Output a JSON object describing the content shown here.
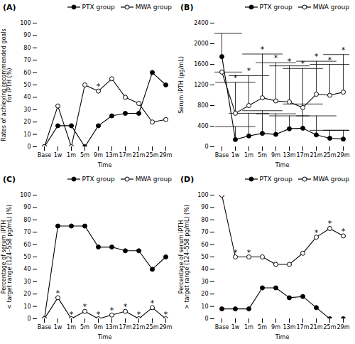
{
  "chart_data": [
    {
      "type": "line",
      "title": "(A)",
      "xlabel": "Time",
      "ylabel": "Rates of achieving recommended goals\nfor iPTH (%)",
      "categories": [
        "Base",
        "1w",
        "1m",
        "5m",
        "9m",
        "13m",
        "17m",
        "21m",
        "25m",
        "29m"
      ],
      "series": [
        {
          "name": "PTX group",
          "color": "black",
          "marker": "filled_circle",
          "values": [
            0,
            17,
            17,
            0,
            17,
            25,
            27,
            27,
            60,
            50
          ]
        },
        {
          "name": "MWA group",
          "color": "black",
          "marker": "open_circle",
          "values": [
            0,
            33,
            0,
            50,
            45,
            55,
            40,
            35,
            20,
            22
          ]
        }
      ],
      "ylim": [
        0,
        100
      ],
      "yticks": [
        0,
        10,
        20,
        30,
        40,
        50,
        60,
        70,
        80,
        90,
        100
      ],
      "legend": "upper right",
      "annotations": [
        {
          "text": "*",
          "x": "9m",
          "y": 45
        }
      ]
    },
    {
      "type": "line",
      "title": "(B)",
      "xlabel": "Time",
      "ylabel": "Serum iPTH (pg/mL)",
      "categories": [
        "Base",
        "1w",
        "1m",
        "5m",
        "9m",
        "13m",
        "17m",
        "21m",
        "25m",
        "29m"
      ],
      "series": [
        {
          "name": "PTX group",
          "color": "black",
          "marker": "filled_circle",
          "values": [
            1750,
            140,
            210,
            260,
            240,
            350,
            360,
            230,
            165,
            150
          ],
          "err_high": [
            2200,
            390,
            650,
            700,
            640,
            600,
            830,
            600,
            320,
            320
          ]
        },
        {
          "name": "MWA group",
          "color": "black",
          "marker": "open_circle",
          "values": [
            1450,
            650,
            800,
            950,
            890,
            870,
            760,
            1020,
            1000,
            1060
          ],
          "err_high": [
            1450,
            1250,
            1380,
            1800,
            1630,
            1570,
            1520,
            1660,
            1600,
            1790
          ]
        }
      ],
      "ylim": [
        0,
        2400
      ],
      "yticks": [
        0,
        400,
        800,
        1200,
        1600,
        2000,
        2400
      ],
      "legend": "upper right",
      "annotations": [
        {
          "text": "*",
          "x": "1w",
          "y": 1250
        },
        {
          "text": "*",
          "x": "1m",
          "y": 1380
        },
        {
          "text": "*",
          "x": "5m",
          "y": 1800
        },
        {
          "text": "*",
          "x": "9m",
          "y": 1630
        },
        {
          "text": "*",
          "x": "13m",
          "y": 1570
        },
        {
          "text": "*",
          "x": "17m",
          "y": 1520
        },
        {
          "text": "*",
          "x": "21m",
          "y": 1660
        },
        {
          "text": "*",
          "x": "25m",
          "y": 1600
        },
        {
          "text": "*",
          "x": "29m",
          "y": 1790
        }
      ]
    },
    {
      "type": "line",
      "title": "(C)",
      "xlabel": "Time",
      "ylabel": "Percentage of serum iPTH\n< target range (124–558 pg/mL) (%)",
      "categories": [
        "Base",
        "1w",
        "1m",
        "5m",
        "9m",
        "13m",
        "17m",
        "21m",
        "25m",
        "29m"
      ],
      "series": [
        {
          "name": "PTX group",
          "color": "black",
          "marker": "filled_circle",
          "values": [
            0,
            75,
            75,
            75,
            58,
            58,
            55,
            55,
            40,
            50
          ]
        },
        {
          "name": "MWA group",
          "color": "black",
          "marker": "open_circle",
          "values": [
            0,
            17,
            0,
            6,
            0,
            3,
            6,
            0,
            9,
            0
          ]
        }
      ],
      "ylim": [
        0,
        100
      ],
      "yticks": [
        0,
        10,
        20,
        30,
        40,
        50,
        60,
        70,
        80,
        90,
        100
      ],
      "legend": "upper right",
      "annotations": [
        {
          "text": "*",
          "x": "1w",
          "y": 17
        },
        {
          "text": "*",
          "x": "1m",
          "y": 0
        },
        {
          "text": "*",
          "x": "5m",
          "y": 6
        },
        {
          "text": "*",
          "x": "9m",
          "y": 0
        },
        {
          "text": "*",
          "x": "13m",
          "y": 3
        },
        {
          "text": "*",
          "x": "17m",
          "y": 6
        },
        {
          "text": "*",
          "x": "21m",
          "y": 0
        },
        {
          "text": "*",
          "x": "25m",
          "y": 9
        },
        {
          "text": "*",
          "x": "29m",
          "y": 0
        }
      ]
    },
    {
      "type": "line",
      "title": "(D)",
      "xlabel": "Time",
      "ylabel": "Percentage of serum iPTH\n> target range (124–558 pg/mL) (%)",
      "categories": [
        "Base",
        "1w",
        "1m",
        "5m",
        "9m",
        "13m",
        "17m",
        "21m",
        "25m",
        "29m"
      ],
      "series": [
        {
          "name": "PTX group",
          "color": "black",
          "marker": "filled_circle",
          "values": [
            8,
            8,
            8,
            25,
            25,
            17,
            18,
            9,
            0,
            0
          ]
        },
        {
          "name": "MWA group",
          "color": "black",
          "marker": "open_circle",
          "values": [
            100,
            50,
            50,
            50,
            44,
            44,
            53,
            66,
            73,
            67
          ]
        }
      ],
      "ylim": [
        0,
        100
      ],
      "yticks": [
        0,
        10,
        20,
        30,
        40,
        50,
        60,
        70,
        80,
        90,
        100
      ],
      "legend": "upper right",
      "annotations": [
        {
          "text": "*",
          "x": "1w",
          "y": 50
        },
        {
          "text": "*",
          "x": "1m",
          "y": 50
        },
        {
          "text": "*",
          "x": "21m",
          "y": 66
        },
        {
          "text": "*",
          "x": "25m",
          "y": 73
        },
        {
          "text": "*",
          "x": "29m",
          "y": 67
        }
      ]
    }
  ]
}
